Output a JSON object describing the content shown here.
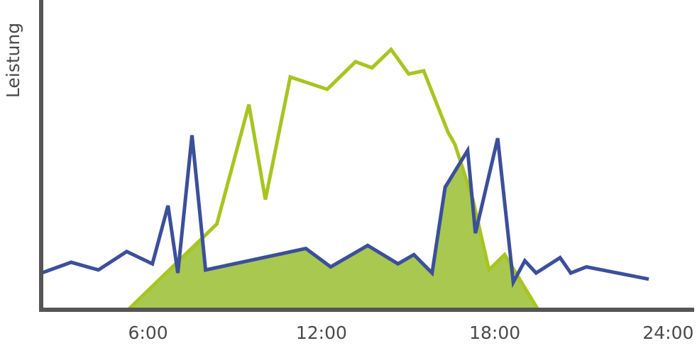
{
  "chart_data": {
    "type": "line",
    "y_label": "Leistung",
    "xlim": [
      2.3,
      24.9
    ],
    "ylim": [
      0,
      100
    ],
    "xticks": [
      {
        "value": 6,
        "label": "6:00"
      },
      {
        "value": 12,
        "label": "12:00"
      },
      {
        "value": 18,
        "label": "18:00"
      },
      {
        "value": 24,
        "label": "24:00"
      }
    ],
    "grid": false,
    "fill_color": "#a8c84f",
    "series": [
      {
        "color": "#a7c520",
        "x": [
          5.31,
          8.38,
          9.49,
          10.06,
          10.92,
          12.2,
          13.18,
          13.75,
          14.41,
          15.02,
          15.54,
          16.38,
          16.62,
          17.24,
          17.8,
          18.34,
          19.5
        ],
        "values": [
          0,
          28,
          67,
          36,
          76,
          72,
          81,
          79,
          85,
          77,
          78,
          58,
          54,
          36,
          13,
          18,
          0
        ]
      },
      {
        "color": "#3b4f9b",
        "x": [
          2.31,
          3.34,
          4.28,
          5.26,
          6.15,
          6.69,
          7.03,
          7.52,
          7.99,
          11.46,
          12.32,
          13.6,
          14.65,
          15.2,
          15.83,
          16.28,
          17.06,
          17.33,
          18.1,
          18.64,
          19.04,
          19.43,
          20.26,
          20.63,
          21.17,
          23.33
        ],
        "values": [
          12,
          15.5,
          13,
          19,
          15,
          34,
          12,
          57,
          13,
          20,
          14,
          21,
          15,
          18,
          12,
          40,
          52,
          25,
          56,
          9,
          16,
          12,
          17,
          12,
          14,
          10
        ]
      }
    ]
  }
}
